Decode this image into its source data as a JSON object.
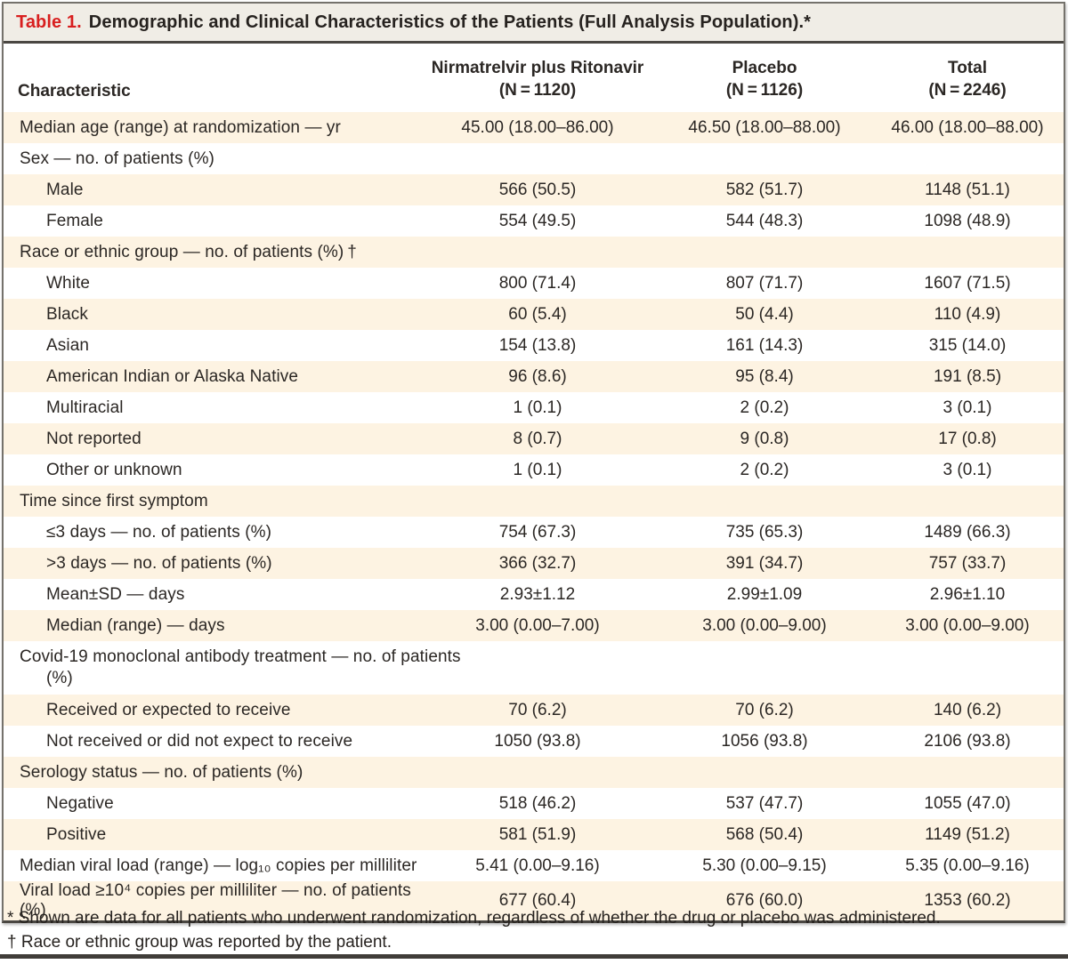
{
  "title": {
    "label": "Table 1.",
    "caption": "Demographic and Clinical Characteristics of the Patients (Full Analysis Population).*"
  },
  "colors": {
    "row_cream": "#fdf3e2",
    "title_bar_bg": "#f0ede6",
    "title_red": "#d81f1f",
    "rule_dark": "#4a4742"
  },
  "table": {
    "characteristic_header": "Characteristic",
    "columns": [
      {
        "line1": "Nirmatrelvir plus Ritonavir",
        "line2": "(N = 1120)"
      },
      {
        "line1": "Placebo",
        "line2": "(N = 1126)"
      },
      {
        "line1": "Total",
        "line2": "(N = 2246)"
      }
    ],
    "rows": [
      {
        "label": "Median age (range) at randomization — yr",
        "indent": false,
        "section": false,
        "values": [
          "45.00 (18.00–86.00)",
          "46.50 (18.00–88.00)",
          "46.00 (18.00–88.00)"
        ]
      },
      {
        "label": "Sex — no. of patients (%)",
        "indent": false,
        "section": true,
        "values": []
      },
      {
        "label": "Male",
        "indent": true,
        "section": false,
        "values": [
          "566 (50.5)",
          "582 (51.7)",
          "1148 (51.1)"
        ]
      },
      {
        "label": "Female",
        "indent": true,
        "section": false,
        "values": [
          "554 (49.5)",
          "544 (48.3)",
          "1098 (48.9)"
        ]
      },
      {
        "label": "Race or ethnic group — no. of patients (%) †",
        "indent": false,
        "section": true,
        "values": []
      },
      {
        "label": "White",
        "indent": true,
        "section": false,
        "values": [
          "800 (71.4)",
          "807 (71.7)",
          "1607 (71.5)"
        ]
      },
      {
        "label": "Black",
        "indent": true,
        "section": false,
        "values": [
          "60 (5.4)",
          "50 (4.4)",
          "110 (4.9)"
        ]
      },
      {
        "label": "Asian",
        "indent": true,
        "section": false,
        "values": [
          "154 (13.8)",
          "161 (14.3)",
          "315 (14.0)"
        ]
      },
      {
        "label": "American Indian or Alaska Native",
        "indent": true,
        "section": false,
        "values": [
          "96 (8.6)",
          "95 (8.4)",
          "191 (8.5)"
        ]
      },
      {
        "label": "Multiracial",
        "indent": true,
        "section": false,
        "values": [
          "1 (0.1)",
          "2 (0.2)",
          "3 (0.1)"
        ]
      },
      {
        "label": "Not reported",
        "indent": true,
        "section": false,
        "values": [
          "8 (0.7)",
          "9 (0.8)",
          "17 (0.8)"
        ]
      },
      {
        "label": "Other or unknown",
        "indent": true,
        "section": false,
        "values": [
          "1 (0.1)",
          "2 (0.2)",
          "3 (0.1)"
        ]
      },
      {
        "label": "Time since first symptom",
        "indent": false,
        "section": true,
        "values": []
      },
      {
        "label": "≤3 days — no. of patients (%)",
        "indent": true,
        "section": false,
        "values": [
          "754 (67.3)",
          "735 (65.3)",
          "1489 (66.3)"
        ]
      },
      {
        "label": ">3 days — no. of patients (%)",
        "indent": true,
        "section": false,
        "values": [
          "366 (32.7)",
          "391 (34.7)",
          "757 (33.7)"
        ]
      },
      {
        "label": "Mean±SD — days",
        "indent": true,
        "section": false,
        "values": [
          "2.93±1.12",
          "2.99±1.09",
          "2.96±1.10"
        ]
      },
      {
        "label": "Median (range) — days",
        "indent": true,
        "section": false,
        "values": [
          "3.00 (0.00–7.00)",
          "3.00 (0.00–9.00)",
          "3.00 (0.00–9.00)"
        ]
      },
      {
        "label": "Covid-19 monoclonal antibody treatment — no. of pa­tients (%)",
        "indent": false,
        "section": true,
        "tall": true,
        "values": []
      },
      {
        "label": "Received or expected to receive",
        "indent": true,
        "section": false,
        "values": [
          "70 (6.2)",
          "70 (6.2)",
          "140 (6.2)"
        ]
      },
      {
        "label": "Not received or did not expect to receive",
        "indent": true,
        "section": false,
        "values": [
          "1050 (93.8)",
          "1056 (93.8)",
          "2106 (93.8)"
        ]
      },
      {
        "label": "Serology status — no. of patients (%)",
        "indent": false,
        "section": true,
        "values": []
      },
      {
        "label": "Negative",
        "indent": true,
        "section": false,
        "values": [
          "518 (46.2)",
          "537 (47.7)",
          "1055 (47.0)"
        ]
      },
      {
        "label": "Positive",
        "indent": true,
        "section": false,
        "values": [
          "581 (51.9)",
          "568 (50.4)",
          "1149 (51.2)"
        ]
      },
      {
        "label": "Median viral load (range) — log₁₀ copies per milliliter",
        "indent": false,
        "section": false,
        "values": [
          "5.41 (0.00–9.16)",
          "5.30 (0.00–9.15)",
          "5.35 (0.00–9.16)"
        ]
      },
      {
        "label": "Viral load ≥10⁴ copies per milliliter — no. of patients (%)",
        "indent": false,
        "section": false,
        "values": [
          "677 (60.4)",
          "676 (60.0)",
          "1353 (60.2)"
        ]
      }
    ]
  },
  "footnotes": [
    "* Shown are data for all patients who underwent randomization, regardless of whether the drug or placebo was administered.",
    "† Race or ethnic group was reported by the patient."
  ]
}
